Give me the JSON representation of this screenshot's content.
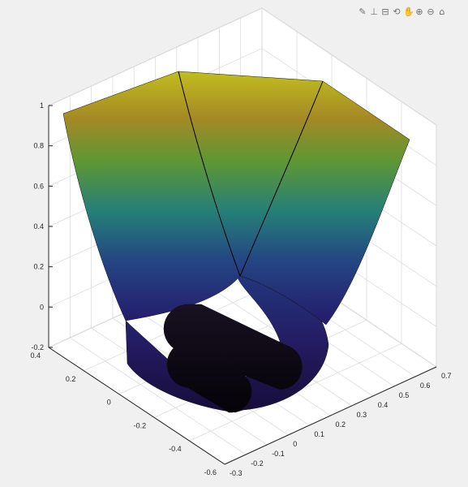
{
  "toolbar": [
    {
      "name": "brush-icon",
      "glyph": "✎"
    },
    {
      "name": "data-tips-icon",
      "glyph": "⊥"
    },
    {
      "name": "export-icon",
      "glyph": "⊟"
    },
    {
      "name": "rotate-3d-icon",
      "glyph": "⟲"
    },
    {
      "name": "pan-icon",
      "glyph": "✋"
    },
    {
      "name": "zoom-in-icon",
      "glyph": "⊕"
    },
    {
      "name": "zoom-out-icon",
      "glyph": "⊖"
    },
    {
      "name": "home-icon",
      "glyph": "⌂"
    }
  ],
  "chart_data": {
    "type": "surface",
    "view": "3d",
    "grid": true,
    "colormap": "parula",
    "xlim": [
      -0.3,
      0.7
    ],
    "ylim": [
      -0.6,
      0.4
    ],
    "zlim": [
      -0.2,
      1
    ],
    "x_ticks": [
      "-0.3",
      "-0.2",
      "-0.1",
      "0",
      "0.1",
      "0.2",
      "0.3",
      "0.4",
      "0.5",
      "0.6",
      "0.7"
    ],
    "y_ticks": [
      "-0.6",
      "-0.4",
      "-0.2",
      "0",
      "0.2",
      "0.4"
    ],
    "z_ticks": [
      "-0.2",
      "0",
      "0.2",
      "0.4",
      "0.6",
      "0.8",
      "1"
    ]
  }
}
